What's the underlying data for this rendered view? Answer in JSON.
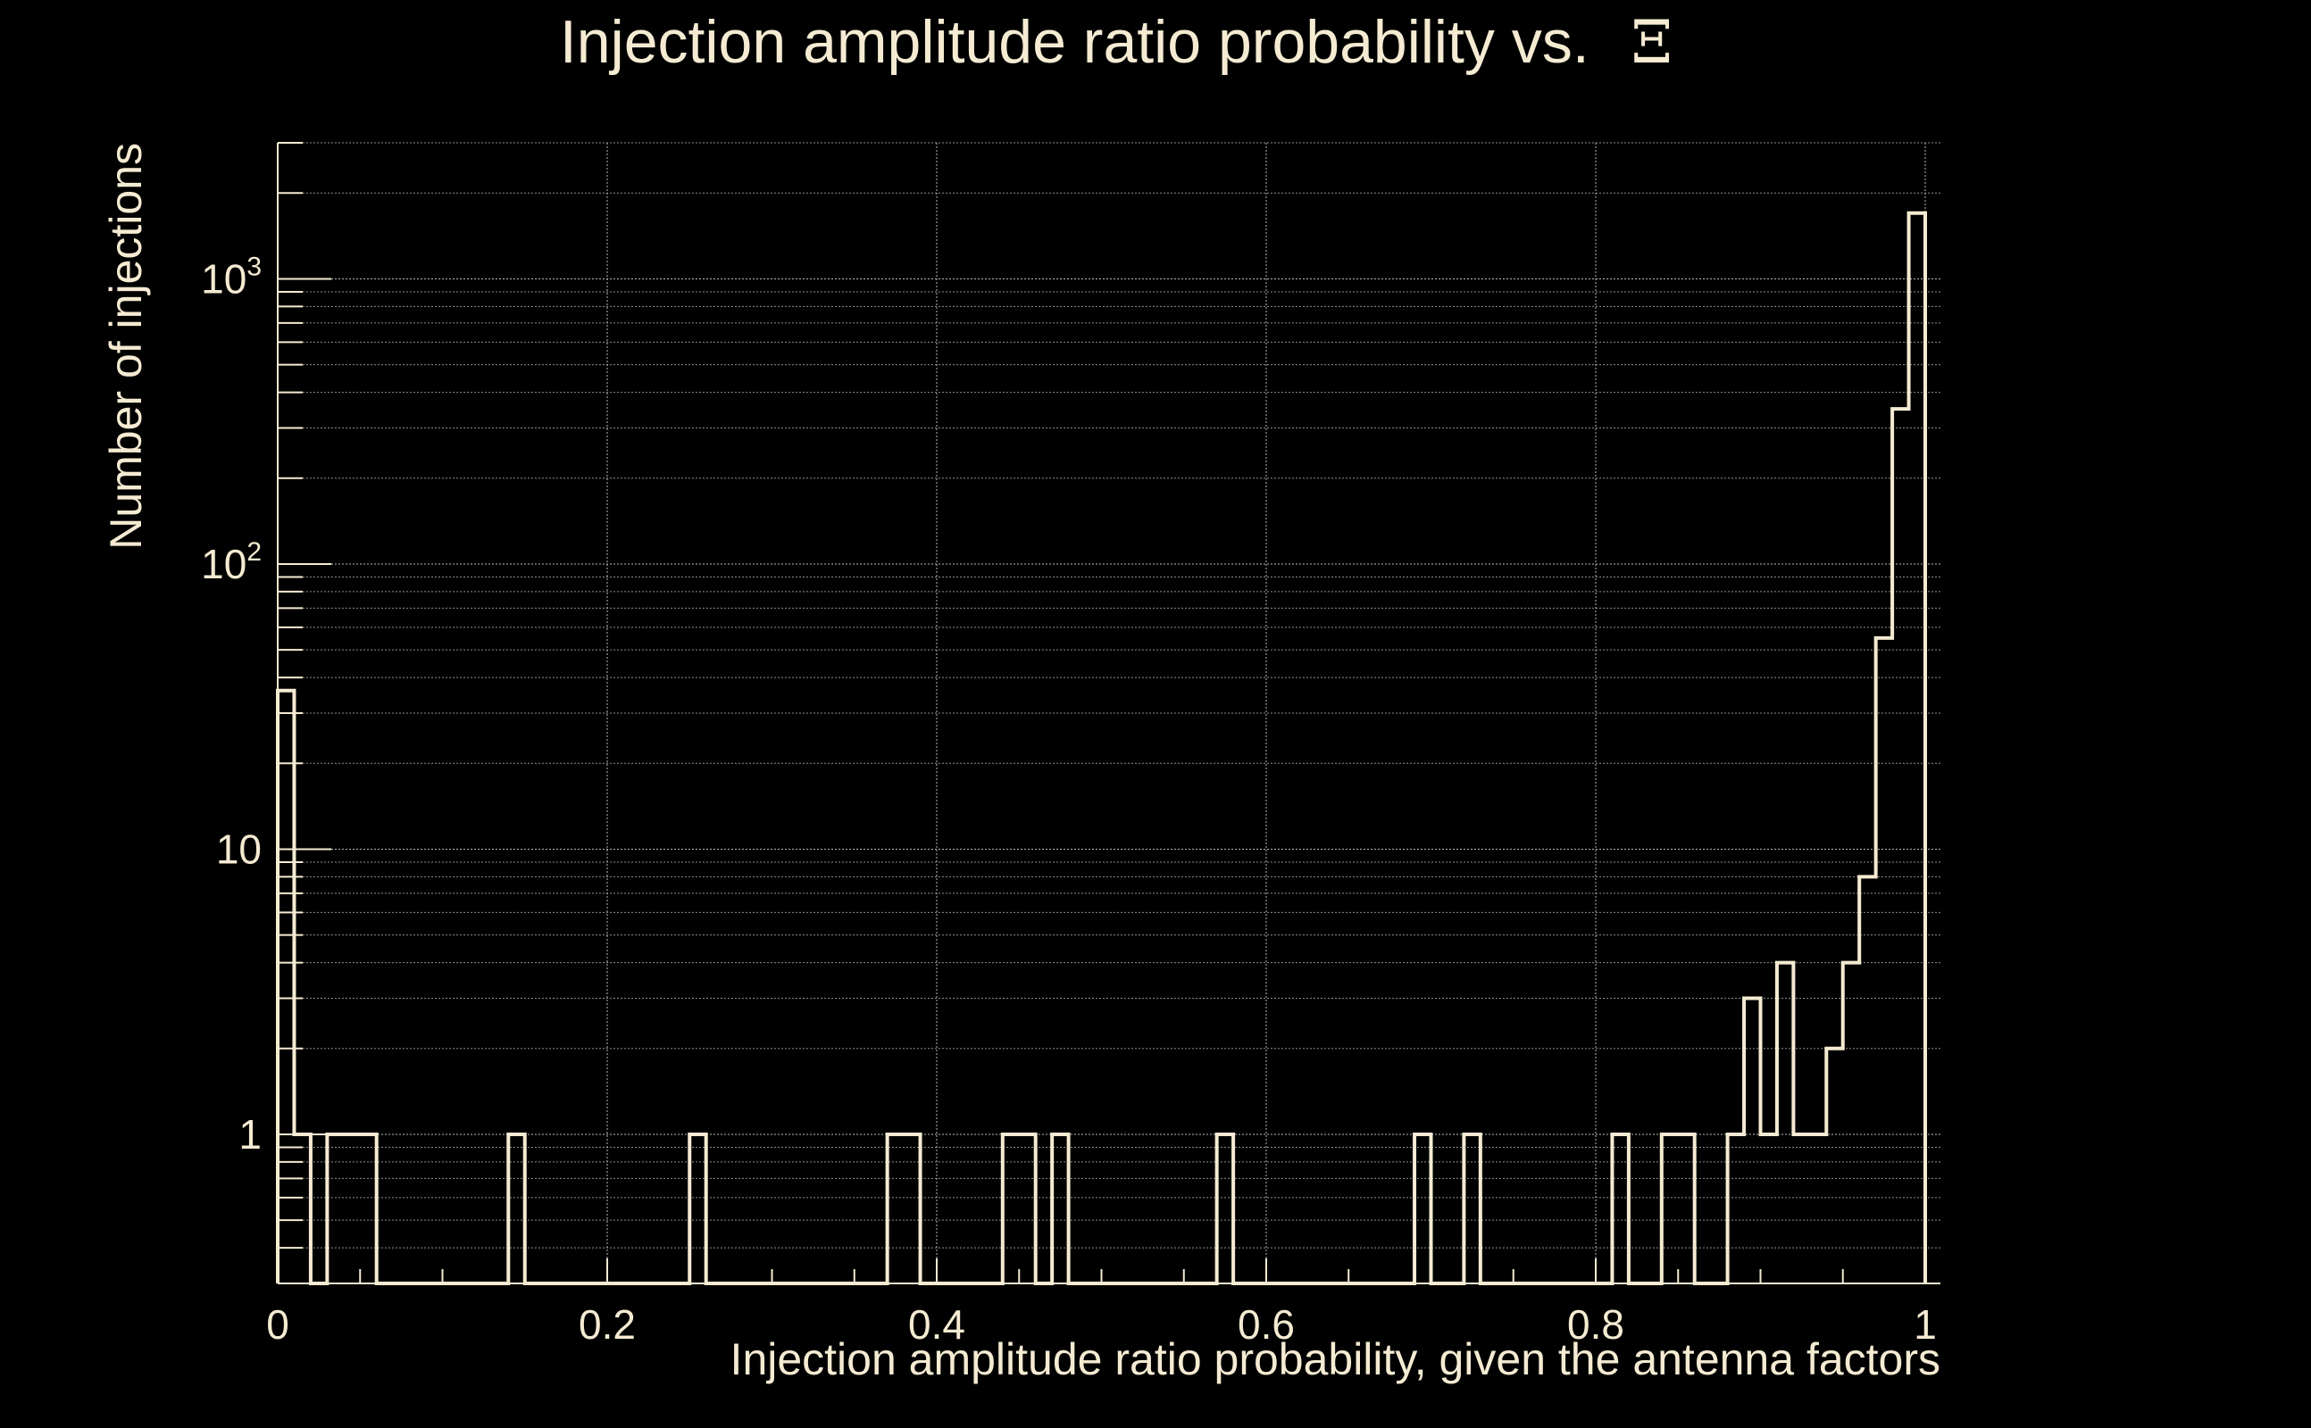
{
  "chart_data": {
    "type": "histogram",
    "title": "Injection amplitude ratio probability vs.",
    "title_symbol": "Ξ",
    "xlabel": "Injection amplitude ratio probability, given the antenna factors",
    "ylabel": "Number of injections",
    "xlim": [
      0,
      1.01
    ],
    "ylim": [
      0.3,
      3000
    ],
    "yscale": "log",
    "grid": true,
    "x_ticks": [
      {
        "value": 0,
        "label": "0"
      },
      {
        "value": 0.2,
        "label": "0.2"
      },
      {
        "value": 0.4,
        "label": "0.4"
      },
      {
        "value": 0.6,
        "label": "0.6"
      },
      {
        "value": 0.8,
        "label": "0.8"
      },
      {
        "value": 1,
        "label": "1"
      }
    ],
    "y_ticks": [
      {
        "value": 1,
        "label": "1",
        "sup": ""
      },
      {
        "value": 10,
        "label": "10",
        "sup": ""
      },
      {
        "value": 100,
        "label": "10",
        "sup": "2"
      },
      {
        "value": 1000,
        "label": "10",
        "sup": "3"
      }
    ],
    "bin_width": 0.01,
    "bins": [
      {
        "x": 0.0,
        "count": 36
      },
      {
        "x": 0.01,
        "count": 1
      },
      {
        "x": 0.03,
        "count": 1
      },
      {
        "x": 0.04,
        "count": 1
      },
      {
        "x": 0.05,
        "count": 1
      },
      {
        "x": 0.14,
        "count": 1
      },
      {
        "x": 0.25,
        "count": 1
      },
      {
        "x": 0.37,
        "count": 1
      },
      {
        "x": 0.38,
        "count": 1
      },
      {
        "x": 0.44,
        "count": 1
      },
      {
        "x": 0.45,
        "count": 1
      },
      {
        "x": 0.47,
        "count": 1
      },
      {
        "x": 0.57,
        "count": 1
      },
      {
        "x": 0.69,
        "count": 1
      },
      {
        "x": 0.72,
        "count": 1
      },
      {
        "x": 0.81,
        "count": 1
      },
      {
        "x": 0.84,
        "count": 1
      },
      {
        "x": 0.85,
        "count": 1
      },
      {
        "x": 0.88,
        "count": 1
      },
      {
        "x": 0.89,
        "count": 3
      },
      {
        "x": 0.9,
        "count": 1
      },
      {
        "x": 0.91,
        "count": 4
      },
      {
        "x": 0.92,
        "count": 1
      },
      {
        "x": 0.93,
        "count": 1
      },
      {
        "x": 0.94,
        "count": 2
      },
      {
        "x": 0.95,
        "count": 4
      },
      {
        "x": 0.96,
        "count": 8
      },
      {
        "x": 0.97,
        "count": 55
      },
      {
        "x": 0.98,
        "count": 350
      },
      {
        "x": 0.99,
        "count": 1700
      }
    ]
  }
}
